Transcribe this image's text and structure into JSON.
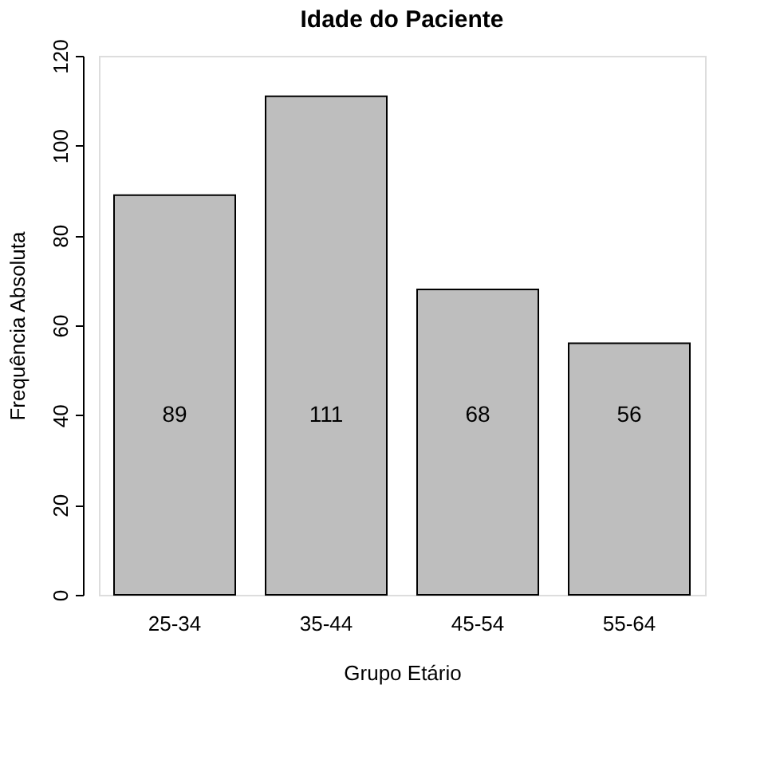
{
  "chart_data": {
    "type": "bar",
    "title": "Idade do Paciente",
    "xlabel": "Grupo Etário",
    "ylabel": "Frequência Absoluta",
    "categories": [
      "25-34",
      "35-44",
      "45-54",
      "55-64"
    ],
    "values": [
      89,
      111,
      68,
      56
    ],
    "color": "#bebebe",
    "ylim": [
      0,
      120
    ],
    "yticks": [
      0,
      20,
      40,
      60,
      80,
      100,
      120
    ],
    "grid": false,
    "data_labels": true
  }
}
